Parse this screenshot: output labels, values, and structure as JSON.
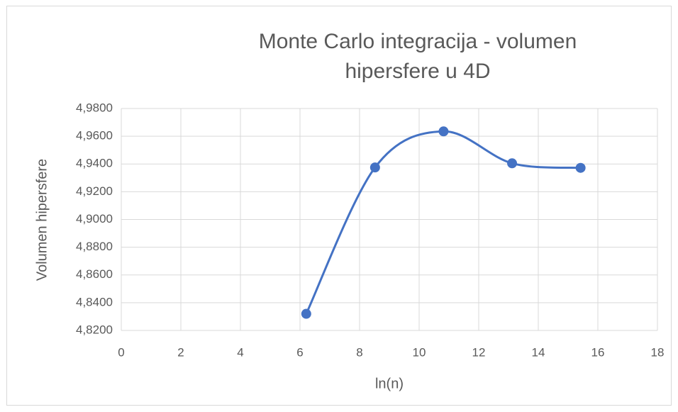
{
  "chart_data": {
    "type": "scatter",
    "title": "Monte Carlo integracija - volumen hipersfere u 4D",
    "xlabel": "ln(n)",
    "ylabel": "Volumen hipersfere",
    "x": [
      6.21,
      8.52,
      10.82,
      13.12,
      15.42
    ],
    "series": [
      {
        "color": "#4472c4",
        "values": [
          4.832,
          4.9375,
          4.9635,
          4.9405,
          4.9372
        ]
      }
    ],
    "smooth": true,
    "grid": true,
    "xlim": [
      0,
      18
    ],
    "xticks": [
      0,
      2,
      4,
      6,
      8,
      10,
      12,
      14,
      16,
      18
    ],
    "ylim": [
      4.82,
      4.98
    ],
    "yticks": [
      {
        "value": 4.82,
        "label": "4,8200"
      },
      {
        "value": 4.84,
        "label": "4,8400"
      },
      {
        "value": 4.86,
        "label": "4,8600"
      },
      {
        "value": 4.88,
        "label": "4,8800"
      },
      {
        "value": 4.9,
        "label": "4,9000"
      },
      {
        "value": 4.92,
        "label": "4,9200"
      },
      {
        "value": 4.94,
        "label": "4,9400"
      },
      {
        "value": 4.96,
        "label": "4,9600"
      },
      {
        "value": 4.98,
        "label": "4,9800"
      }
    ]
  }
}
